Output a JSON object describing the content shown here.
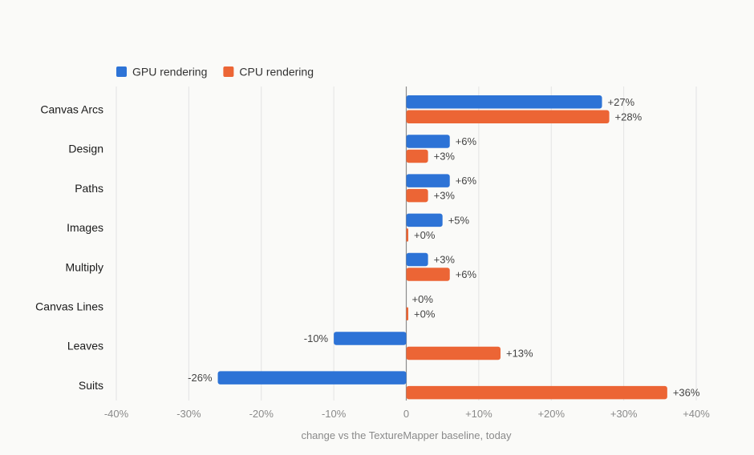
{
  "chart_data": {
    "type": "bar",
    "orientation": "horizontal",
    "categories": [
      "Canvas Arcs",
      "Design",
      "Paths",
      "Images",
      "Multiply",
      "Canvas Lines",
      "Leaves",
      "Suits"
    ],
    "series": [
      {
        "name": "GPU rendering",
        "color": "#2d73d6",
        "values": [
          27,
          6,
          6,
          5,
          3,
          0,
          -10,
          -26
        ],
        "labels": [
          "+27%",
          "+6%",
          "+6%",
          "+5%",
          "+3%",
          "+0%",
          "-10%",
          "-26%"
        ]
      },
      {
        "name": "CPU rendering",
        "color": "#ec6535",
        "values": [
          28,
          3,
          3,
          0,
          6,
          0,
          13,
          36
        ],
        "labels": [
          "+28%",
          "+3%",
          "+3%",
          "+0%",
          "+6%",
          "+0%",
          "+13%",
          "+36%"
        ]
      }
    ],
    "xlim": [
      -40,
      40
    ],
    "xticks": [
      -40,
      -30,
      -20,
      -10,
      0,
      10,
      20,
      30,
      40
    ],
    "xtick_labels": [
      "-40%",
      "-30%",
      "-20%",
      "-10%",
      "0",
      "+10%",
      "+20%",
      "+30%",
      "+40%"
    ],
    "xlabel": "change vs the TextureMapper baseline, today",
    "ylabel": "",
    "title": "",
    "legend": "top-left",
    "grid": true
  }
}
